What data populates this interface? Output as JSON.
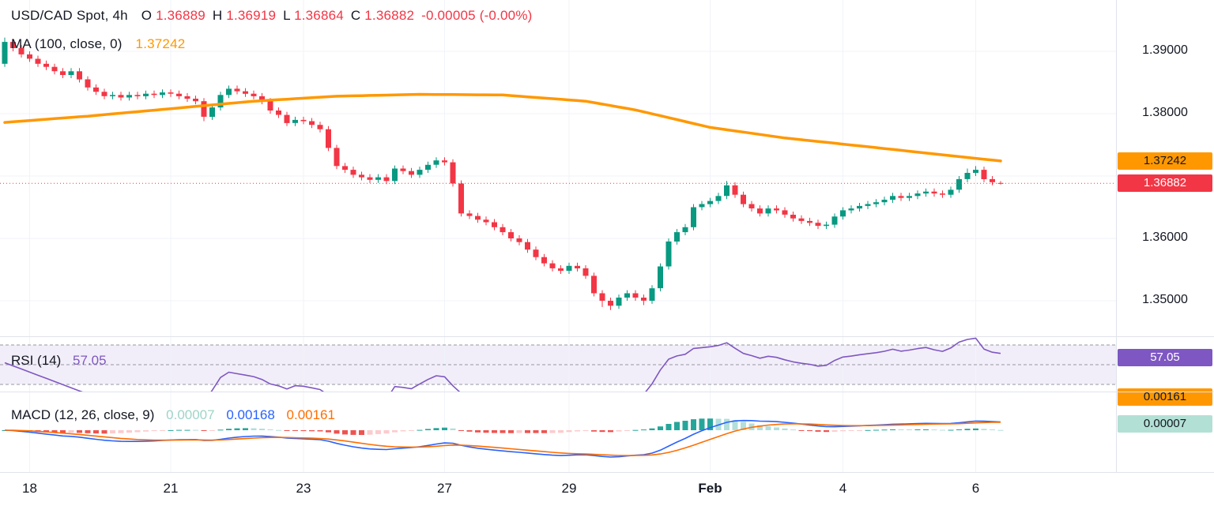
{
  "colors": {
    "up": "#089981",
    "down": "#f23645",
    "ma": "#ff9800",
    "rsi": "#7e57c2",
    "rsi_band": "rgba(126,87,194,0.10)",
    "macd_line": "#2962ff",
    "signal_line": "#ff6d00",
    "hist_pos": "#26a69a",
    "hist_pos_weak": "#b2dfdb",
    "hist_neg": "#ef5350",
    "hist_neg_weak": "#fccbcd",
    "grid": "#f0f3fa",
    "dashed": "#9598a1",
    "axis_text": "#131722",
    "separator": "#e0e3eb",
    "ma_badge_bg": "#ff9800",
    "last_badge_bg": "#f23645",
    "rsi_badge_bg": "#7e57c2",
    "signal_badge_bg": "#ff9800",
    "hist_badge_bg": "#b3e0d4"
  },
  "header_legend": {
    "symbol_title": "USD/CAD Spot, 4h",
    "o_label": "O",
    "o_value": "1.36889",
    "h_label": "H",
    "h_value": "1.36919",
    "l_label": "L",
    "l_value": "1.36864",
    "c_label": "C",
    "c_value": "1.36882",
    "change": "-0.00005 (-0.00%)",
    "ma_label": "MA (100, close, 0)",
    "ma_value": "1.37242"
  },
  "rsi_panel": {
    "label": "RSI (14)",
    "value": "57.05",
    "badge": "57.05"
  },
  "macd_panel": {
    "label": "MACD (12, 26, close, 9)",
    "hist_value": "0.00007",
    "macd_value": "0.00168",
    "signal_value": "0.00161",
    "badge_signal": "0.00161",
    "badge_hist": "0.00007"
  },
  "price_scale": {
    "ma_badge": "1.37242",
    "last_badge": "1.36882"
  },
  "chart_data": {
    "type": "candlestick",
    "symbol": "USD/CAD Spot",
    "interval": "4h",
    "y_axis": {
      "visible_labels": [
        {
          "text": "1.39000",
          "price": 1.39
        },
        {
          "text": "1.38000",
          "price": 1.38
        },
        {
          "text": "1.36000",
          "price": 1.36
        },
        {
          "text": "1.35000",
          "price": 1.35
        }
      ],
      "gridline_prices": [
        1.39,
        1.38,
        1.37,
        1.36,
        1.35
      ],
      "last_price": 1.36882
    },
    "x_ticks": [
      {
        "label": "18",
        "index": 3
      },
      {
        "label": "21",
        "index": 20
      },
      {
        "label": "23",
        "index": 36
      },
      {
        "label": "27",
        "index": 53
      },
      {
        "label": "29",
        "index": 68
      },
      {
        "label": "Feb",
        "index": 85,
        "bold": true
      },
      {
        "label": "4",
        "index": 101
      },
      {
        "label": "6",
        "index": 117
      }
    ],
    "candles": [
      [
        1.388,
        1.3922,
        1.3875,
        1.3915
      ],
      [
        1.3915,
        1.392,
        1.39,
        1.3905
      ],
      [
        1.3905,
        1.391,
        1.389,
        1.3895
      ],
      [
        1.3895,
        1.39,
        1.3883,
        1.3888
      ],
      [
        1.3888,
        1.3893,
        1.3875,
        1.388
      ],
      [
        1.388,
        1.3885,
        1.387,
        1.3875
      ],
      [
        1.3875,
        1.388,
        1.3863,
        1.3868
      ],
      [
        1.3868,
        1.3873,
        1.3857,
        1.3862
      ],
      [
        1.3862,
        1.3873,
        1.3857,
        1.3868
      ],
      [
        1.3868,
        1.3873,
        1.385,
        1.3855
      ],
      [
        1.3855,
        1.386,
        1.3837,
        1.3842
      ],
      [
        1.3842,
        1.3847,
        1.383,
        1.3835
      ],
      [
        1.3835,
        1.384,
        1.3823,
        1.3828
      ],
      [
        1.3828,
        1.3835,
        1.3823,
        1.383
      ],
      [
        1.383,
        1.3835,
        1.3821,
        1.3826
      ],
      [
        1.3826,
        1.3835,
        1.3821,
        1.383
      ],
      [
        1.383,
        1.3835,
        1.3823,
        1.3828
      ],
      [
        1.3828,
        1.3837,
        1.3823,
        1.3832
      ],
      [
        1.3832,
        1.3837,
        1.3825,
        1.383
      ],
      [
        1.383,
        1.3839,
        1.3825,
        1.3834
      ],
      [
        1.3834,
        1.3839,
        1.3827,
        1.3832
      ],
      [
        1.3832,
        1.3837,
        1.3823,
        1.3828
      ],
      [
        1.3828,
        1.3833,
        1.3819,
        1.3824
      ],
      [
        1.3824,
        1.3829,
        1.3815,
        1.382
      ],
      [
        1.382,
        1.3825,
        1.3788,
        1.3795
      ],
      [
        1.3795,
        1.3815,
        1.379,
        1.381
      ],
      [
        1.381,
        1.3835,
        1.3805,
        1.383
      ],
      [
        1.383,
        1.3845,
        1.3825,
        1.384
      ],
      [
        1.384,
        1.3845,
        1.3831,
        1.3836
      ],
      [
        1.3836,
        1.3841,
        1.3827,
        1.3832
      ],
      [
        1.3832,
        1.3837,
        1.3823,
        1.3828
      ],
      [
        1.3828,
        1.3833,
        1.3815,
        1.382
      ],
      [
        1.382,
        1.3825,
        1.38,
        1.3805
      ],
      [
        1.3805,
        1.381,
        1.3793,
        1.3798
      ],
      [
        1.3798,
        1.3803,
        1.378,
        1.3785
      ],
      [
        1.3785,
        1.3795,
        1.378,
        1.379
      ],
      [
        1.379,
        1.3795,
        1.3783,
        1.3788
      ],
      [
        1.3788,
        1.3793,
        1.3777,
        1.3782
      ],
      [
        1.3782,
        1.3787,
        1.377,
        1.3775
      ],
      [
        1.3775,
        1.378,
        1.374,
        1.3745
      ],
      [
        1.3745,
        1.375,
        1.3711,
        1.3716
      ],
      [
        1.3716,
        1.3721,
        1.3705,
        1.371
      ],
      [
        1.371,
        1.3715,
        1.3697,
        1.3702
      ],
      [
        1.3702,
        1.3707,
        1.3693,
        1.3698
      ],
      [
        1.3698,
        1.3703,
        1.3689,
        1.3694
      ],
      [
        1.3694,
        1.3703,
        1.3689,
        1.3698
      ],
      [
        1.3698,
        1.3703,
        1.3687,
        1.3692
      ],
      [
        1.3692,
        1.3717,
        1.3687,
        1.3712
      ],
      [
        1.3712,
        1.3717,
        1.3703,
        1.3708
      ],
      [
        1.3708,
        1.3713,
        1.3697,
        1.3702
      ],
      [
        1.3702,
        1.3715,
        1.3697,
        1.371
      ],
      [
        1.371,
        1.3723,
        1.3705,
        1.3718
      ],
      [
        1.3718,
        1.373,
        1.3713,
        1.3725
      ],
      [
        1.3725,
        1.373,
        1.3717,
        1.3722
      ],
      [
        1.3722,
        1.3727,
        1.3683,
        1.3688
      ],
      [
        1.3688,
        1.3693,
        1.3635,
        1.364
      ],
      [
        1.364,
        1.3645,
        1.3631,
        1.3636
      ],
      [
        1.3636,
        1.3641,
        1.3625,
        1.363
      ],
      [
        1.363,
        1.3635,
        1.3621,
        1.3626
      ],
      [
        1.3626,
        1.3631,
        1.3613,
        1.3618
      ],
      [
        1.3618,
        1.3623,
        1.3605,
        1.361
      ],
      [
        1.361,
        1.3615,
        1.3595,
        1.36
      ],
      [
        1.36,
        1.3605,
        1.3589,
        1.3594
      ],
      [
        1.3594,
        1.3599,
        1.3577,
        1.3582
      ],
      [
        1.3582,
        1.3587,
        1.3565,
        1.357
      ],
      [
        1.357,
        1.3575,
        1.3555,
        1.356
      ],
      [
        1.356,
        1.3565,
        1.3547,
        1.3552
      ],
      [
        1.3552,
        1.3557,
        1.3543,
        1.3548
      ],
      [
        1.3548,
        1.3561,
        1.3543,
        1.3556
      ],
      [
        1.3556,
        1.3561,
        1.3547,
        1.3552
      ],
      [
        1.3552,
        1.3557,
        1.3535,
        1.354
      ],
      [
        1.354,
        1.3545,
        1.3507,
        1.3512
      ],
      [
        1.3512,
        1.3517,
        1.349,
        1.35
      ],
      [
        1.35,
        1.3505,
        1.3485,
        1.3492
      ],
      [
        1.3492,
        1.351,
        1.3487,
        1.3505
      ],
      [
        1.3505,
        1.3517,
        1.35,
        1.3512
      ],
      [
        1.3512,
        1.3517,
        1.35,
        1.3505
      ],
      [
        1.3505,
        1.351,
        1.3493,
        1.35
      ],
      [
        1.35,
        1.3525,
        1.3495,
        1.352
      ],
      [
        1.352,
        1.356,
        1.3515,
        1.3555
      ],
      [
        1.3555,
        1.36,
        1.355,
        1.3595
      ],
      [
        1.3595,
        1.3615,
        1.359,
        1.361
      ],
      [
        1.361,
        1.3623,
        1.3605,
        1.3618
      ],
      [
        1.3618,
        1.3655,
        1.3613,
        1.365
      ],
      [
        1.365,
        1.366,
        1.3645,
        1.3655
      ],
      [
        1.3655,
        1.3665,
        1.365,
        1.366
      ],
      [
        1.366,
        1.3673,
        1.3655,
        1.3668
      ],
      [
        1.3668,
        1.3692,
        1.3663,
        1.3685
      ],
      [
        1.3685,
        1.369,
        1.3665,
        1.367
      ],
      [
        1.367,
        1.3675,
        1.365,
        1.3655
      ],
      [
        1.3655,
        1.366,
        1.3643,
        1.3648
      ],
      [
        1.3648,
        1.3653,
        1.3635,
        1.364
      ],
      [
        1.364,
        1.3653,
        1.3635,
        1.3648
      ],
      [
        1.3648,
        1.3653,
        1.364,
        1.3645
      ],
      [
        1.3645,
        1.365,
        1.3633,
        1.3638
      ],
      [
        1.3638,
        1.3643,
        1.3627,
        1.3632
      ],
      [
        1.3632,
        1.3637,
        1.3623,
        1.3628
      ],
      [
        1.3628,
        1.3633,
        1.362,
        1.3625
      ],
      [
        1.3625,
        1.363,
        1.3615,
        1.362
      ],
      [
        1.362,
        1.3627,
        1.3615,
        1.3622
      ],
      [
        1.3622,
        1.364,
        1.3617,
        1.3635
      ],
      [
        1.3635,
        1.365,
        1.363,
        1.3645
      ],
      [
        1.3645,
        1.3653,
        1.364,
        1.3648
      ],
      [
        1.3648,
        1.3657,
        1.3643,
        1.3652
      ],
      [
        1.3652,
        1.366,
        1.3647,
        1.3655
      ],
      [
        1.3655,
        1.3663,
        1.365,
        1.3658
      ],
      [
        1.3658,
        1.3667,
        1.3653,
        1.3662
      ],
      [
        1.3662,
        1.3673,
        1.3657,
        1.3668
      ],
      [
        1.3668,
        1.3673,
        1.366,
        1.3665
      ],
      [
        1.3665,
        1.3673,
        1.366,
        1.3668
      ],
      [
        1.3668,
        1.3677,
        1.3663,
        1.3672
      ],
      [
        1.3672,
        1.368,
        1.3667,
        1.3675
      ],
      [
        1.3675,
        1.368,
        1.3667,
        1.3672
      ],
      [
        1.3672,
        1.3677,
        1.3665,
        1.367
      ],
      [
        1.367,
        1.3683,
        1.3665,
        1.3678
      ],
      [
        1.3678,
        1.37,
        1.3673,
        1.3695
      ],
      [
        1.3695,
        1.3712,
        1.369,
        1.3705
      ],
      [
        1.3705,
        1.3716,
        1.37,
        1.371
      ],
      [
        1.371,
        1.3715,
        1.369,
        1.3695
      ],
      [
        1.3695,
        1.37,
        1.3685,
        1.369
      ],
      [
        1.36889,
        1.36919,
        1.36864,
        1.36882
      ]
    ],
    "ma100": {
      "period": 100,
      "source": "close",
      "offset": 0,
      "last": 1.37242,
      "points": [
        [
          0,
          1.3786
        ],
        [
          10,
          1.3796
        ],
        [
          20,
          1.3808
        ],
        [
          30,
          1.382
        ],
        [
          40,
          1.3828
        ],
        [
          50,
          1.3831
        ],
        [
          60,
          1.383
        ],
        [
          70,
          1.382
        ],
        [
          76,
          1.3806
        ],
        [
          85,
          1.3778
        ],
        [
          94,
          1.3761
        ],
        [
          104,
          1.3747
        ],
        [
          113,
          1.3734
        ],
        [
          120,
          1.37242
        ]
      ]
    },
    "rsi": {
      "period": 14,
      "last": 57.05,
      "upper_band": 70,
      "middle_band": 50,
      "lower_band": 30
    },
    "macd": {
      "fast": 12,
      "slow": 26,
      "source": "close",
      "smoothing": 9,
      "last_histogram": 7e-05,
      "last_macd": 0.00168,
      "last_signal": 0.00161
    }
  }
}
